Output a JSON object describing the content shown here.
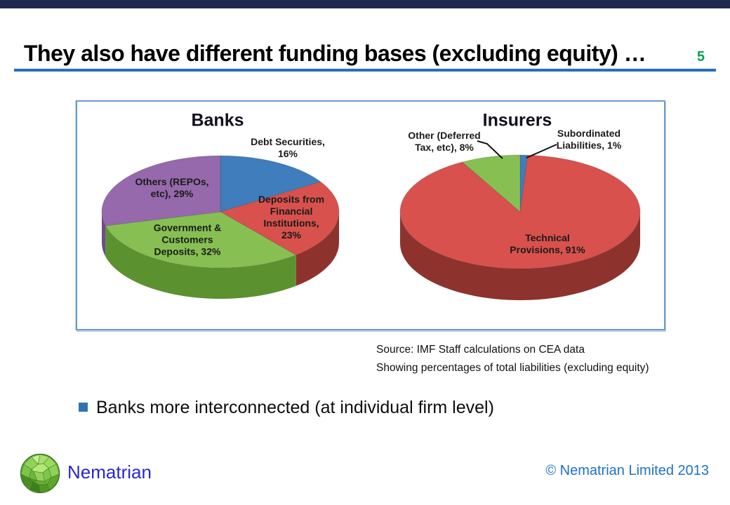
{
  "header": {
    "title": "They also have different funding bases (excluding equity) …",
    "page_number": "5",
    "underline_color": "#2270c0",
    "page_number_color": "#00a551",
    "top_bar_color": "#1f2950"
  },
  "chart_data": [
    {
      "type": "pie",
      "style": "3d-pie",
      "title": "Banks",
      "labels": [
        "Debt Securities",
        "Deposits from Financial Institutions",
        "Government & Customers Deposits",
        "Others (REPOs, etc)"
      ],
      "values": [
        16,
        23,
        32,
        29
      ],
      "unit": "%",
      "colors": [
        "#3f7dbc",
        "#d8514d",
        "#87bf53",
        "#9569ab"
      ],
      "side_colors": [
        "#2b5784",
        "#8e322e",
        "#5c9130",
        "#6b4d85"
      ],
      "start_angle_deg": 0,
      "legend": "none",
      "data_labels": "category-and-percent"
    },
    {
      "type": "pie",
      "style": "3d-pie",
      "title": "Insurers",
      "labels": [
        "Subordinated Liabilities",
        "Technical Provisions",
        "Other (Deferred Tax, etc)"
      ],
      "values": [
        1,
        91,
        8
      ],
      "unit": "%",
      "colors": [
        "#3f7dbc",
        "#d8514d",
        "#87bf53"
      ],
      "side_colors": [
        "#2b5784",
        "#8e322e",
        "#5c9130"
      ],
      "start_angle_deg": 0,
      "legend": "none",
      "data_labels": "category-and-percent"
    }
  ],
  "chart": {
    "overlays": {
      "banks_title": "Banks",
      "debt_lines": [
        "Debt Securities,",
        "16%"
      ],
      "deposit_lines": [
        "Deposits from",
        "Financial",
        "Institutions,",
        "23%"
      ],
      "govt_lines": [
        "Government &",
        "Customers",
        "Deposits, 32%"
      ],
      "others_lines": [
        "Others (REPOs,",
        "etc), 29%"
      ],
      "insurers_title": "Insurers",
      "deferred_lines": [
        "Other (Deferred",
        "Tax, etc), 8%"
      ],
      "sub_lines": [
        "Subordinated",
        "Liabilities, 1%"
      ],
      "technical_lines": [
        "Technical",
        "Provisions, 91%"
      ]
    }
  },
  "source": {
    "line1": "Source: IMF Staff calculations on CEA data",
    "line2": "Showing percentages of total liabilities (excluding equity)"
  },
  "bullet": {
    "text": "Banks more interconnected (at individual firm level)",
    "marker_color": "#2e74b5"
  },
  "footer": {
    "brand": "Nematrian",
    "brand_color": "#2727cf",
    "copyright": "© Nematrian Limited 2013",
    "copyright_color": "#1d71c8",
    "logo": "nematrian-green-polyhedron"
  }
}
